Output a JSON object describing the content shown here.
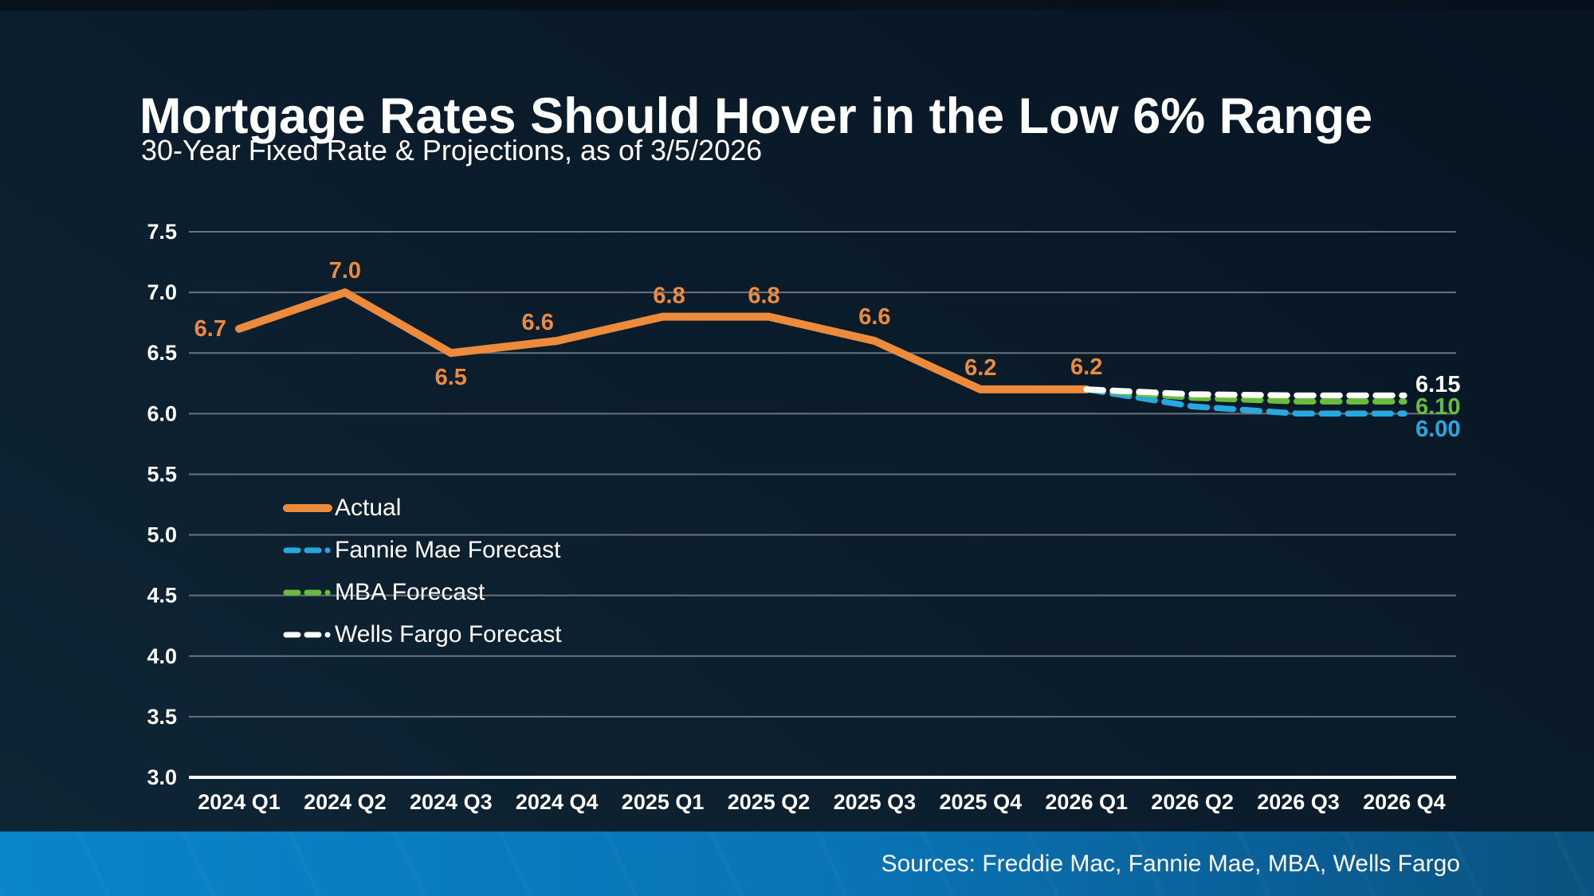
{
  "header": {
    "title": "Mortgage Rates Should Hover in the Low 6% Range",
    "subtitle": "30-Year Fixed Rate & Projections, as of 3/5/2026"
  },
  "footer": {
    "sources": "Sources: Freddie Mac, Fannie Mae, MBA, Wells Fargo"
  },
  "colors": {
    "background": "#0b1d2c",
    "gridline": "#6a737d",
    "axis_line": "#ffffff",
    "text": "#ffffff",
    "footer_gradient_left": "#0a84cb",
    "footer_gradient_right": "#0a527f"
  },
  "chart_data": {
    "type": "line",
    "categories": [
      "2024 Q1",
      "2024 Q2",
      "2024 Q3",
      "2024 Q4",
      "2025 Q1",
      "2025 Q2",
      "2025 Q3",
      "2025 Q4",
      "2026 Q1",
      "2026 Q2",
      "2026 Q3",
      "2026 Q4"
    ],
    "y_ticks": [
      "7.5",
      "7.0",
      "6.5",
      "6.0",
      "5.5",
      "5.0",
      "4.5",
      "4.0",
      "3.5",
      "3.0"
    ],
    "ylim": [
      3.0,
      7.5
    ],
    "y_step": 0.5,
    "grid": true,
    "legend_position": "inside-left",
    "series": [
      {
        "name": "Actual",
        "color": "#EC8B3C",
        "style": "solid",
        "x_start_index": 0,
        "values": [
          6.7,
          7.0,
          6.5,
          6.6,
          6.8,
          6.8,
          6.6,
          6.2,
          6.2
        ],
        "labels": [
          "6.7",
          "7.0",
          "6.5",
          "6.6",
          "6.8",
          "6.8",
          "6.6",
          "6.2",
          "6.2"
        ]
      },
      {
        "name": "Fannie Mae Forecast",
        "color": "#29A8E0",
        "style": "dashed",
        "x_start_index": 8,
        "values": [
          6.2,
          6.06,
          6.0,
          6.0
        ],
        "end_label": "6.00"
      },
      {
        "name": "MBA Forecast",
        "color": "#68BE3A",
        "style": "dashed",
        "x_start_index": 8,
        "values": [
          6.2,
          6.13,
          6.1,
          6.1
        ],
        "end_label": "6.10"
      },
      {
        "name": "Wells Fargo Forecast",
        "color": "#FFFFFF",
        "style": "dashed",
        "x_start_index": 8,
        "values": [
          6.2,
          6.16,
          6.15,
          6.15
        ],
        "end_label": "6.15"
      }
    ]
  }
}
